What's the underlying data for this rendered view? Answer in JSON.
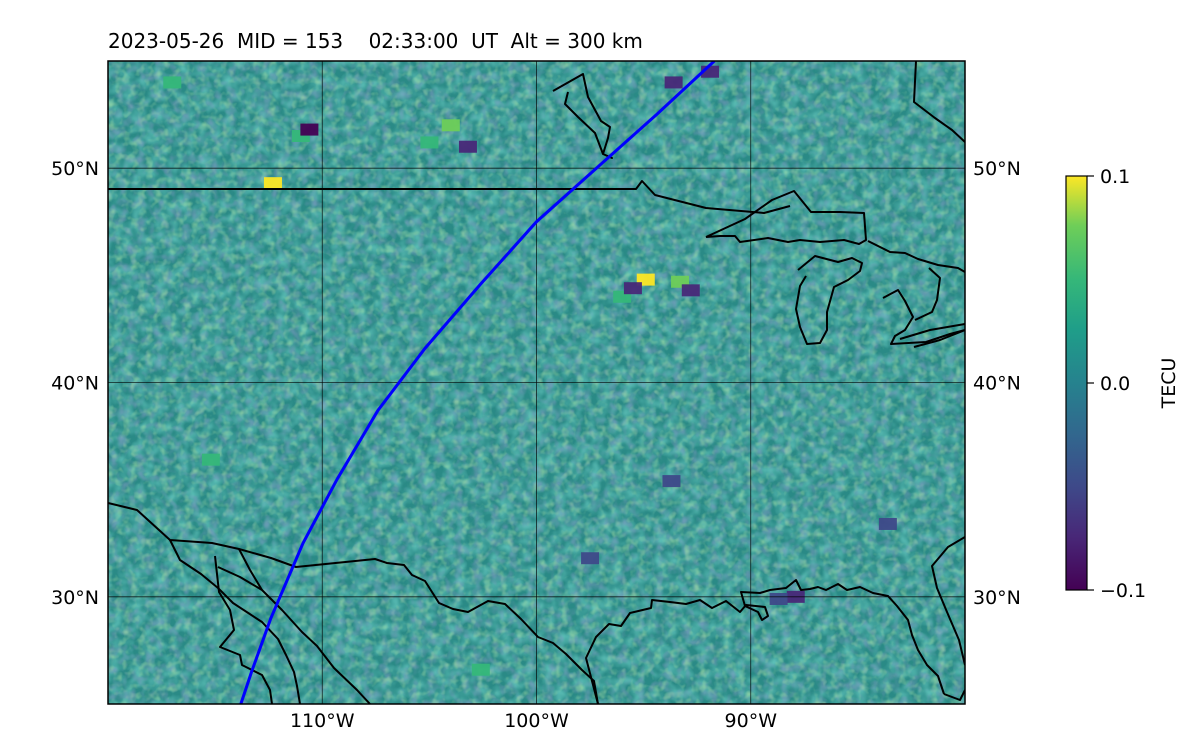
{
  "title": "2023-05-26  MID = 153    02:33:00  UT  Alt = 300 km",
  "map": {
    "lon_range": [
      -120,
      -80
    ],
    "lat_range": [
      25,
      55
    ],
    "lon_ticks": [
      {
        "value": -110,
        "label": "110°W"
      },
      {
        "value": -100,
        "label": "100°W"
      },
      {
        "value": -90,
        "label": "90°W"
      }
    ],
    "lat_ticks": [
      {
        "value": 50,
        "label": "50°N"
      },
      {
        "value": 40,
        "label": "40°N"
      },
      {
        "value": 30,
        "label": "30°N"
      }
    ],
    "track_color": "#0000ff",
    "track": [
      [
        -113.8,
        25.0
      ],
      [
        -113.3,
        26.5
      ],
      [
        -112.4,
        29.0
      ],
      [
        -110.9,
        32.5
      ],
      [
        -109.3,
        35.5
      ],
      [
        -107.4,
        38.7
      ],
      [
        -105.2,
        41.6
      ],
      [
        -102.6,
        44.6
      ],
      [
        -100.0,
        47.5
      ],
      [
        -97.2,
        50.0
      ],
      [
        -94.4,
        52.5
      ],
      [
        -91.7,
        55.0
      ]
    ],
    "coast_color": "#000000",
    "hot_spots": [
      {
        "lon": -112.3,
        "lat": 49.3,
        "value": 0.1
      },
      {
        "lon": -104.0,
        "lat": 52.0,
        "value": 0.07
      },
      {
        "lon": -105.0,
        "lat": 51.2,
        "value": 0.06
      },
      {
        "lon": -94.9,
        "lat": 44.8,
        "value": 0.09
      },
      {
        "lon": -93.3,
        "lat": 44.7,
        "value": 0.08
      },
      {
        "lon": -96.0,
        "lat": 44.0,
        "value": 0.06
      },
      {
        "lon": -115.2,
        "lat": 36.4,
        "value": 0.06
      },
      {
        "lon": -102.6,
        "lat": 26.6,
        "value": 0.05
      },
      {
        "lon": -111.0,
        "lat": 51.5,
        "value": 0.05
      },
      {
        "lon": -117.0,
        "lat": 54.0,
        "value": 0.04
      }
    ],
    "cold_spots": [
      {
        "lon": -110.6,
        "lat": 51.8,
        "value": -0.09
      },
      {
        "lon": -91.9,
        "lat": 54.5,
        "value": -0.08
      },
      {
        "lon": -93.6,
        "lat": 54.0,
        "value": -0.07
      },
      {
        "lon": -103.2,
        "lat": 51.0,
        "value": -0.07
      },
      {
        "lon": -87.9,
        "lat": 30.0,
        "value": -0.08
      },
      {
        "lon": -97.5,
        "lat": 31.8,
        "value": -0.06
      },
      {
        "lon": -95.5,
        "lat": 44.4,
        "value": -0.08
      },
      {
        "lon": -92.8,
        "lat": 44.3,
        "value": -0.08
      },
      {
        "lon": -93.7,
        "lat": 35.4,
        "value": -0.06
      },
      {
        "lon": -88.7,
        "lat": 29.9,
        "value": -0.06
      },
      {
        "lon": -83.6,
        "lat": 33.4,
        "value": -0.05
      }
    ]
  },
  "colorbar": {
    "label": "TECU",
    "min": -0.1,
    "max": 0.1,
    "ticks": [
      {
        "value": 0.1,
        "label": "0.1"
      },
      {
        "value": 0.0,
        "label": "0.0"
      },
      {
        "value": -0.1,
        "label": "−0.1"
      }
    ],
    "colormap": "viridis"
  }
}
